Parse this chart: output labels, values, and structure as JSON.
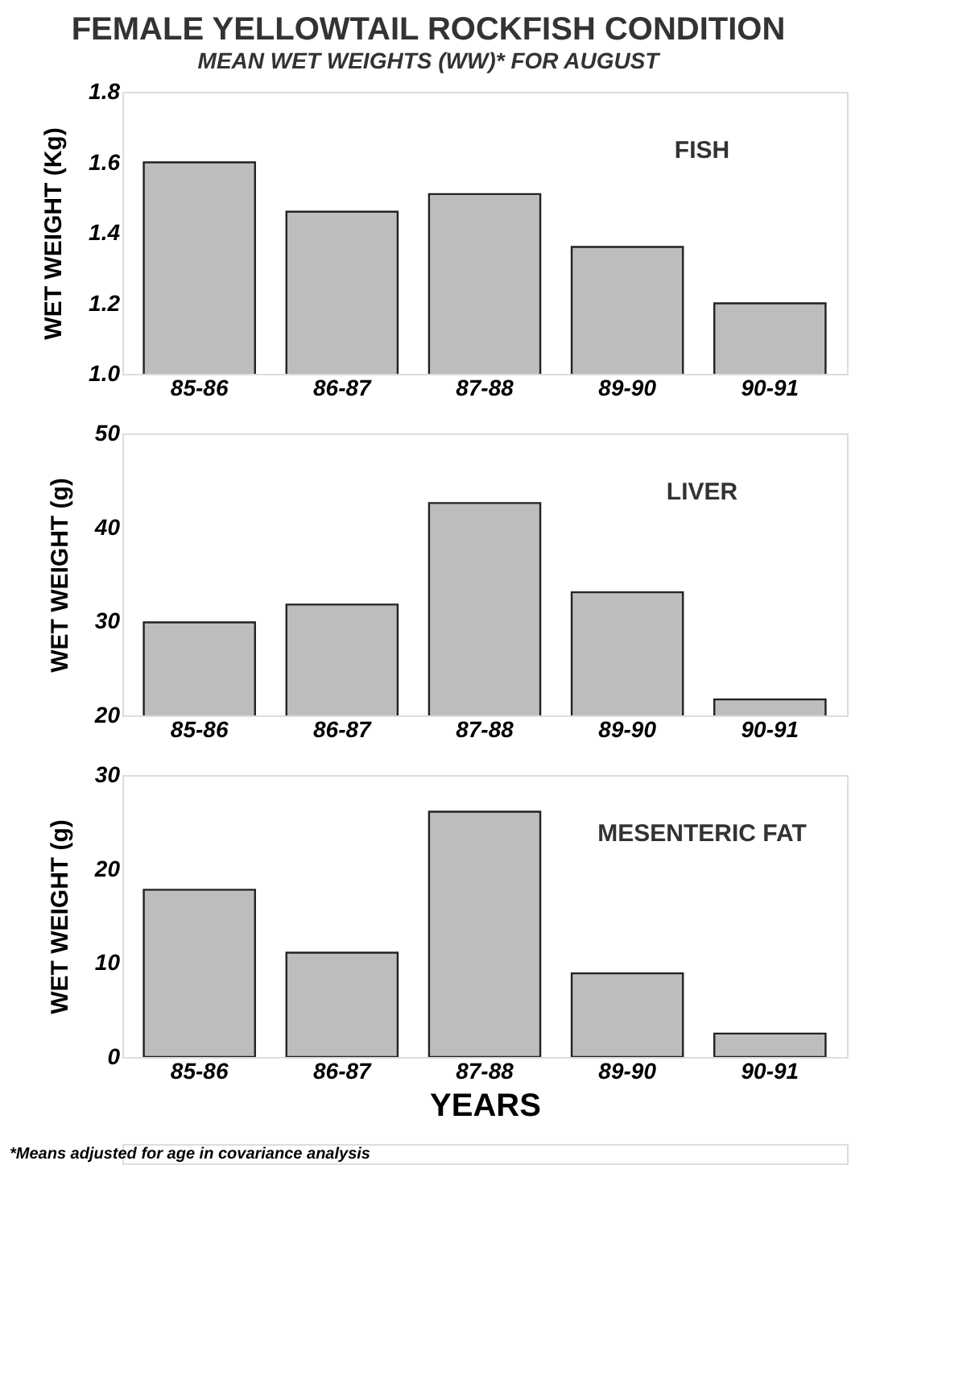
{
  "chart_data": [
    {
      "type": "bar",
      "title": "FEMALE YELLOWTAIL ROCKFISH CONDITION",
      "subtitle": "MEAN WET WEIGHTS (WW)* FOR AUGUST",
      "ylabel": "WET WEIGHT (Kg)",
      "categories": [
        "85-86",
        "86-87",
        "87-88",
        "89-90",
        "90-91"
      ],
      "values": [
        1.6,
        1.46,
        1.51,
        1.36,
        1.2
      ],
      "color": "#bdbdbd",
      "ylim": [
        1.0,
        1.8
      ],
      "yticks": [
        {
          "value": 1.0,
          "label": "1.0"
        },
        1.2,
        1.4,
        1.6,
        1.8
      ],
      "annotations": [
        "FISH"
      ]
    },
    {
      "type": "bar",
      "ylabel": "WET WEIGHT (g)",
      "categories": [
        "85-86",
        "86-87",
        "87-88",
        "89-90",
        "90-91"
      ],
      "values": [
        29.9,
        31.8,
        42.6,
        33.1,
        21.7
      ],
      "color": "#bdbdbd",
      "ylim": [
        20,
        50
      ],
      "yticks": [
        20,
        30,
        40,
        50
      ],
      "annotations": [
        "LIVER"
      ]
    },
    {
      "type": "bar",
      "xlabel": "YEARS",
      "ylabel": "WET WEIGHT (g)",
      "categories": [
        "85-86",
        "86-87",
        "87-88",
        "89-90",
        "90-91"
      ],
      "values": [
        17.8,
        11.1,
        26.1,
        8.9,
        2.5
      ],
      "color": "#bdbdbd",
      "ylim": [
        0,
        30
      ],
      "yticks": [
        0,
        10,
        20,
        30
      ],
      "annotations": [
        "MESENTERIC FAT",
        "*Means adjusted for age in covariance analysis"
      ]
    }
  ]
}
